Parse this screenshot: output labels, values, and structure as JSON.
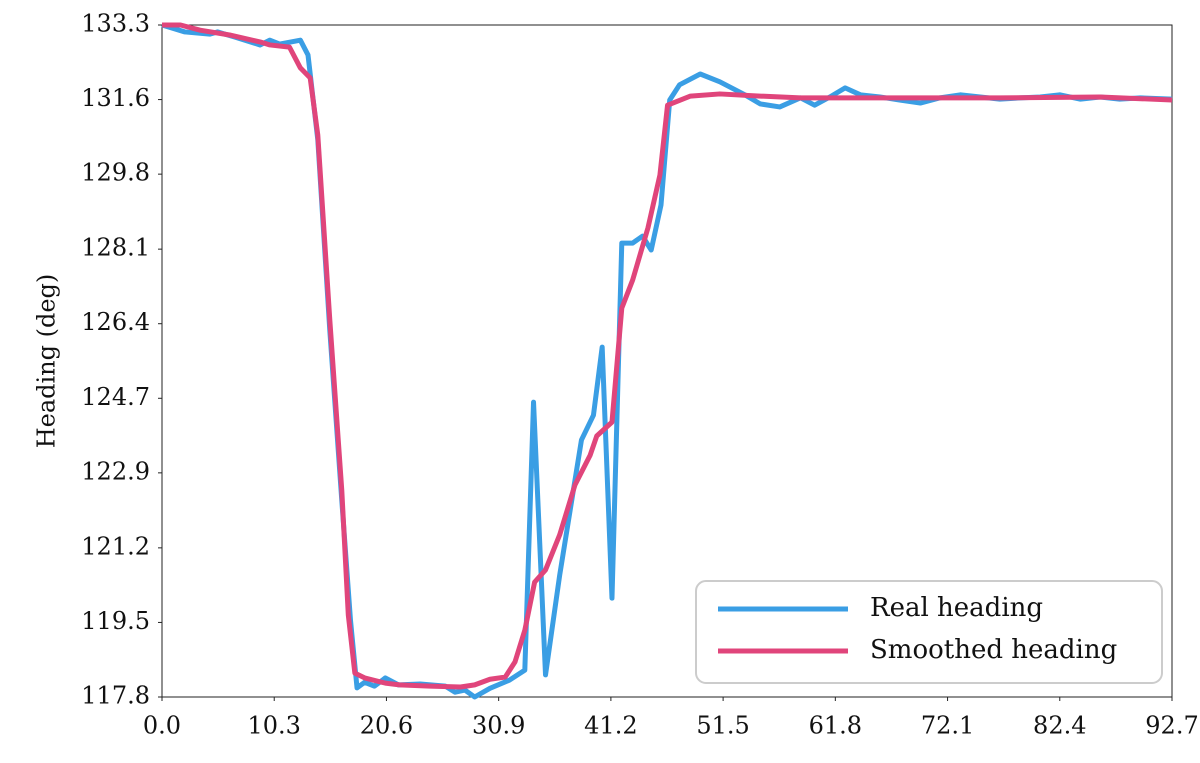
{
  "chart_data": {
    "type": "line",
    "y_label": "Heading (deg)",
    "xlim": [
      0,
      92.7
    ],
    "xticks": [
      0,
      10.3,
      20.6,
      30.9,
      41.2,
      51.5,
      61.8,
      72.1,
      82.4,
      92.7
    ],
    "xtick_labels": [
      "0.0",
      "10.3",
      "20.6",
      "30.9",
      "41.2",
      "51.5",
      "61.8",
      "72.1",
      "82.4",
      "92.7"
    ],
    "ylim": [
      117.8,
      133.3
    ],
    "yticks": [
      {
        "value": 117.8,
        "label": "117.8"
      },
      {
        "value": 119.52,
        "label": "119.5"
      },
      {
        "value": 121.24,
        "label": "121.2"
      },
      {
        "value": 122.97,
        "label": "122.9"
      },
      {
        "value": 124.69,
        "label": "124.7"
      },
      {
        "value": 126.41,
        "label": "126.4"
      },
      {
        "value": 128.13,
        "label": "128.1"
      },
      {
        "value": 129.86,
        "label": "129.8"
      },
      {
        "value": 131.58,
        "label": "131.6"
      },
      {
        "value": 133.3,
        "label": "133.3"
      }
    ],
    "legend": "lower right",
    "series": [
      {
        "name": "Real heading",
        "color": "#3a9ee4",
        "x": [
          0,
          2.1,
          4.4,
          5.1,
          6.7,
          9.0,
          9.9,
          10.8,
          12.7,
          13.4,
          14.3,
          15.4,
          16.5,
          17.3,
          17.9,
          18.6,
          19.5,
          20.5,
          21.7,
          23.7,
          26.0,
          26.9,
          27.8,
          28.7,
          30.1,
          31.9,
          33.3,
          34.1,
          35.2,
          36.5,
          38.5,
          39.6,
          40.4,
          41.3,
          42.2,
          43.2,
          44.1,
          44.9,
          45.8,
          46.6,
          47.5,
          49.4,
          51.2,
          53.5,
          54.9,
          56.7,
          58.6,
          59.9,
          61.3,
          62.7,
          64.1,
          65.9,
          67.7,
          69.6,
          71.4,
          73.3,
          75.1,
          76.9,
          78.8,
          80.6,
          82.4,
          84.3,
          86.1,
          87.9,
          89.8,
          92.7
        ],
        "values": [
          133.3,
          133.14,
          133.09,
          133.14,
          133.02,
          132.84,
          132.95,
          132.86,
          132.95,
          132.61,
          130.65,
          126.26,
          122.34,
          119.57,
          118.01,
          118.14,
          118.05,
          118.24,
          118.08,
          118.1,
          118.05,
          117.91,
          117.96,
          117.8,
          118.0,
          118.19,
          118.42,
          124.6,
          118.31,
          120.61,
          123.73,
          124.3,
          125.87,
          120.08,
          128.27,
          128.27,
          128.43,
          128.11,
          129.15,
          131.57,
          131.92,
          132.17,
          131.99,
          131.69,
          131.48,
          131.41,
          131.62,
          131.45,
          131.64,
          131.85,
          131.69,
          131.64,
          131.57,
          131.5,
          131.62,
          131.69,
          131.64,
          131.59,
          131.62,
          131.64,
          131.69,
          131.59,
          131.64,
          131.59,
          131.62,
          131.59
        ]
      },
      {
        "name": "Smoothed heading",
        "color": "#e0457b",
        "x": [
          0,
          1.7,
          3.5,
          6.2,
          9.0,
          9.9,
          11.7,
          12.7,
          13.6,
          14.3,
          15.4,
          16.5,
          17.1,
          17.7,
          18.6,
          20.5,
          21.8,
          24.6,
          27.4,
          28.7,
          30.1,
          31.5,
          32.4,
          33.3,
          34.2,
          35.2,
          36.5,
          37.9,
          39.3,
          39.9,
          41.3,
          42.2,
          43.2,
          44.6,
          45.7,
          46.4,
          48.5,
          51.2,
          54.9,
          58.6,
          67.7,
          76.9,
          86.1,
          92.7
        ],
        "values": [
          133.3,
          133.3,
          133.18,
          133.07,
          132.91,
          132.84,
          132.79,
          132.31,
          132.08,
          130.76,
          126.5,
          122.57,
          119.69,
          118.35,
          118.24,
          118.12,
          118.08,
          118.05,
          118.03,
          118.08,
          118.21,
          118.26,
          118.61,
          119.34,
          120.45,
          120.73,
          121.54,
          122.69,
          123.38,
          123.82,
          124.14,
          126.77,
          127.42,
          128.62,
          129.84,
          131.45,
          131.66,
          131.71,
          131.66,
          131.62,
          131.62,
          131.62,
          131.64,
          131.57
        ]
      }
    ]
  }
}
